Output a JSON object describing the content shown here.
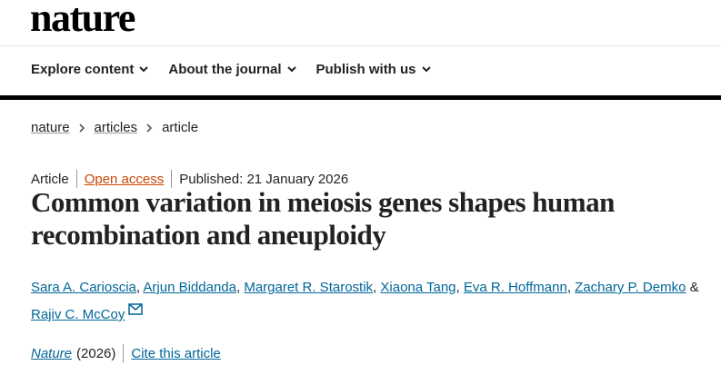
{
  "header": {
    "logo": "nature"
  },
  "nav": {
    "items": [
      "Explore content",
      "About the journal",
      "Publish with us"
    ]
  },
  "breadcrumb": [
    "nature",
    "articles",
    "article"
  ],
  "meta": {
    "type": "Article",
    "access": "Open access",
    "published": "Published: 21 January 2026"
  },
  "title": "Common variation in meiosis genes shapes human recombination and aneuploidy",
  "authors": {
    "list": [
      "Sara A. Carioscia",
      "Arjun Biddanda",
      "Margaret R. Starostik",
      "Xiaona Tang",
      "Eva R. Hoffmann",
      "Zachary P. Demko",
      "Rajiv C. McCoy"
    ],
    "separator": ",",
    "last_separator": "&"
  },
  "citation": {
    "journal": "Nature",
    "year": "(2026)",
    "cite": "Cite this article"
  }
}
